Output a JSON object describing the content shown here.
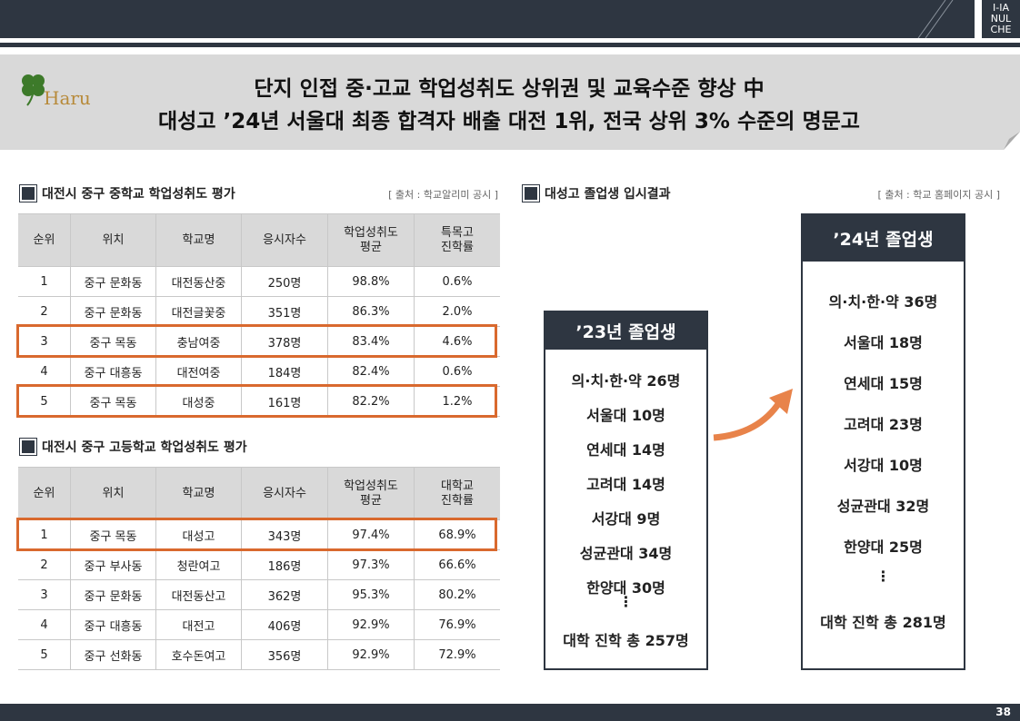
{
  "logo": {
    "lines": [
      "I-IA",
      "NUL",
      "CHE"
    ]
  },
  "brand": "Haru",
  "title": {
    "line1": "단지 인접 중·고교 학업성취도 상위권 및 교육수준 향상 中",
    "line2": "대성고 ’24년 서울대 최종 합격자 배출 대전 1위, 전국 상위 3% 수준의 명문고"
  },
  "middle_table": {
    "heading": "대전시 중구 중학교 학업성취도 평가",
    "source": "[ 출처 : 학교알리미 공시 ]",
    "columns": [
      "순위",
      "위치",
      "학교명",
      "응시자수",
      "학업성취도\n평균",
      "특목고\n진학률"
    ],
    "rows": [
      [
        "1",
        "중구 문화동",
        "대전동산중",
        "250명",
        "98.8%",
        "0.6%"
      ],
      [
        "2",
        "중구 문화동",
        "대전글꽃중",
        "351명",
        "86.3%",
        "2.0%"
      ],
      [
        "3",
        "중구 목동",
        "충남여중",
        "378명",
        "83.4%",
        "4.6%"
      ],
      [
        "4",
        "중구 대흥동",
        "대전여중",
        "184명",
        "82.4%",
        "0.6%"
      ],
      [
        "5",
        "중구 목동",
        "대성중",
        "161명",
        "82.2%",
        "1.2%"
      ]
    ],
    "highlight_rows": [
      2,
      4
    ]
  },
  "high_table": {
    "heading": "대전시 중구 고등학교 학업성취도 평가",
    "columns": [
      "순위",
      "위치",
      "학교명",
      "응시자수",
      "학업성취도\n평균",
      "대학교\n진학률"
    ],
    "rows": [
      [
        "1",
        "중구 목동",
        "대성고",
        "343명",
        "97.4%",
        "68.9%"
      ],
      [
        "2",
        "중구 부사동",
        "청란여고",
        "186명",
        "97.3%",
        "66.6%"
      ],
      [
        "3",
        "중구 문화동",
        "대전동산고",
        "362명",
        "95.3%",
        "80.2%"
      ],
      [
        "4",
        "중구 대흥동",
        "대전고",
        "406명",
        "92.9%",
        "76.9%"
      ],
      [
        "5",
        "중구 선화동",
        "호수돈여고",
        "356명",
        "92.9%",
        "72.9%"
      ]
    ],
    "highlight_rows": [
      0
    ]
  },
  "results": {
    "heading": "대성고 졸업생 입시결과",
    "source": "[ 출처 : 학교 홈페이지 공시 ]",
    "boxes": [
      {
        "title": "’23년 졸업생",
        "items": [
          "의·치·한·약 26명",
          "서울대 10명",
          "연세대 14명",
          "고려대 14명",
          "서강대 9명",
          "성균관대 34명",
          "한양대 30명"
        ],
        "ellipsis": "⋮",
        "total": "대학 진학 총 257명"
      },
      {
        "title": "’24년 졸업생",
        "items": [
          "의·치·한·약 36명",
          "서울대 18명",
          "연세대 15명",
          "고려대 23명",
          "서강대 10명",
          "성균관대 32명",
          "한양대 25명"
        ],
        "ellipsis": "⋮",
        "total": "대학 진학 총 281명"
      }
    ]
  },
  "page_number": "38"
}
